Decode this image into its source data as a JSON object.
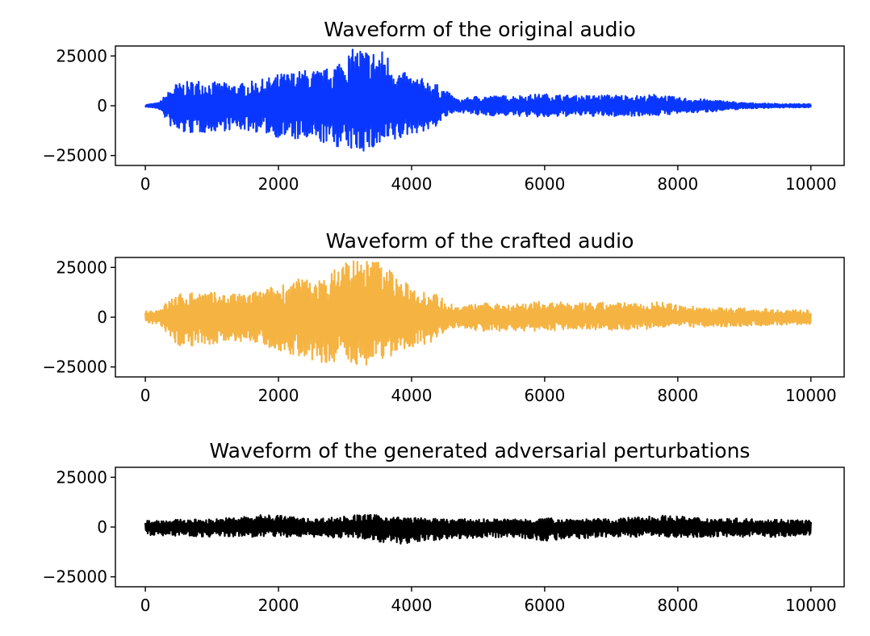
{
  "chart_data": [
    {
      "type": "line",
      "title": "Waveform of the original audio",
      "xlim": [
        -450,
        10500
      ],
      "ylim": [
        -30000,
        30000
      ],
      "xticks": [
        0,
        2000,
        4000,
        6000,
        8000,
        10000
      ],
      "xtick_labels": [
        "0",
        "2000",
        "4000",
        "6000",
        "8000",
        "10000"
      ],
      "yticks": [
        25000,
        0,
        -25000
      ],
      "ytick_labels": [
        "25000",
        "0",
        "−25000"
      ],
      "color": "#0a37ff",
      "envelope": {
        "x": [
          0,
          200,
          450,
          800,
          1000,
          1400,
          1800,
          2000,
          2400,
          2700,
          3000,
          3200,
          3400,
          3600,
          3800,
          4000,
          4300,
          4500,
          4700,
          5000,
          5500,
          6000,
          6500,
          7000,
          7500,
          7700,
          8000,
          8500,
          9000,
          9500,
          10000
        ],
        "upper": [
          500,
          1500,
          11000,
          13000,
          12000,
          11000,
          13500,
          16000,
          18000,
          18000,
          26000,
          30000,
          28000,
          28000,
          18000,
          15000,
          12500,
          8000,
          3000,
          5000,
          5000,
          6000,
          5000,
          5500,
          5000,
          6000,
          4000,
          3000,
          1500,
          1000,
          800
        ],
        "lower": [
          -500,
          -1500,
          -14000,
          -14000,
          -13000,
          -12000,
          -14000,
          -16000,
          -18000,
          -19000,
          -22000,
          -23000,
          -23000,
          -20000,
          -18000,
          -14000,
          -12500,
          -6000,
          -3000,
          -5000,
          -5000,
          -6000,
          -5000,
          -5500,
          -5000,
          -5000,
          -4000,
          -3000,
          -1500,
          -1000,
          -800
        ]
      }
    },
    {
      "type": "line",
      "title": "Waveform of the crafted audio",
      "xlim": [
        -450,
        10500
      ],
      "ylim": [
        -30000,
        30000
      ],
      "xticks": [
        0,
        2000,
        4000,
        6000,
        8000,
        10000
      ],
      "xtick_labels": [
        "0",
        "2000",
        "4000",
        "6000",
        "8000",
        "10000"
      ],
      "yticks": [
        25000,
        0,
        -25000
      ],
      "ytick_labels": [
        "25000",
        "0",
        "−25000"
      ],
      "color": "#f5b342",
      "envelope": {
        "x": [
          0,
          200,
          450,
          800,
          1000,
          1400,
          1800,
          2000,
          2400,
          2700,
          3000,
          3200,
          3400,
          3600,
          3800,
          4000,
          4300,
          4500,
          4700,
          5000,
          5500,
          6000,
          6500,
          7000,
          7500,
          7700,
          8000,
          8500,
          9000,
          9500,
          10000
        ],
        "upper": [
          3000,
          4000,
          11500,
          13500,
          12500,
          11500,
          14000,
          17000,
          20000,
          19000,
          30000,
          30000,
          29000,
          29000,
          19000,
          16000,
          13000,
          9000,
          5000,
          7000,
          7000,
          8000,
          7000,
          7500,
          7000,
          8000,
          6000,
          5000,
          4500,
          4000,
          3500
        ],
        "lower": [
          -3000,
          -4000,
          -14500,
          -14500,
          -13500,
          -12500,
          -14500,
          -17000,
          -20000,
          -25000,
          -23000,
          -24000,
          -24000,
          -21000,
          -19000,
          -15000,
          -13000,
          -7000,
          -5000,
          -7000,
          -7000,
          -7000,
          -6000,
          -6500,
          -6000,
          -6000,
          -5000,
          -5000,
          -4500,
          -4000,
          -3500
        ]
      }
    },
    {
      "type": "line",
      "title": "Waveform of the generated adversarial perturbations",
      "xlim": [
        -450,
        10500
      ],
      "ylim": [
        -30000,
        30000
      ],
      "xticks": [
        0,
        2000,
        4000,
        6000,
        8000,
        10000
      ],
      "xtick_labels": [
        "0",
        "2000",
        "4000",
        "6000",
        "8000",
        "10000"
      ],
      "yticks": [
        25000,
        0,
        -25000
      ],
      "ytick_labels": [
        "25000",
        "0",
        "−25000"
      ],
      "color": "#000000",
      "envelope": {
        "x": [
          0,
          1000,
          1900,
          2500,
          3300,
          3800,
          4500,
          5500,
          6000,
          7000,
          7700,
          8500,
          9500,
          10000
        ],
        "upper": [
          3500,
          4000,
          6500,
          4000,
          6500,
          5000,
          4000,
          4000,
          4500,
          4000,
          6000,
          4500,
          4000,
          3500
        ],
        "lower": [
          -4000,
          -5000,
          -5000,
          -5000,
          -6000,
          -9000,
          -6000,
          -5000,
          -7000,
          -5000,
          -5000,
          -5000,
          -5000,
          -4000
        ]
      }
    }
  ]
}
